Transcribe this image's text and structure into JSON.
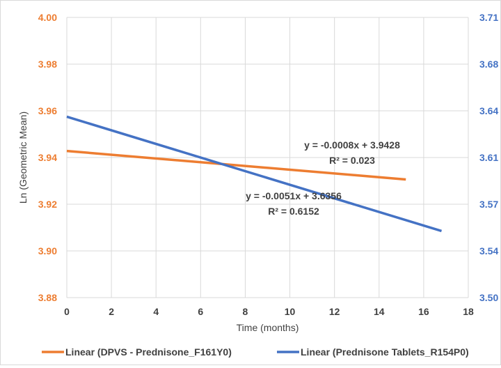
{
  "chart_data": {
    "type": "line",
    "x": {
      "label": "Time (months)",
      "range": [
        0,
        18
      ],
      "ticks": [
        "0",
        "2",
        "4",
        "6",
        "8",
        "10",
        "12",
        "14",
        "16",
        "18"
      ]
    },
    "y_left": {
      "label": "Ln (Geometric Mean)",
      "range": [
        3.88,
        4.0
      ],
      "ticks": [
        "3.88",
        "3.90",
        "3.92",
        "3.94",
        "3.96",
        "3.98",
        "4.00"
      ],
      "color": "#ed7d31"
    },
    "y_right": {
      "label": "",
      "range": [
        3.5,
        3.71
      ],
      "ticks": [
        "3.50",
        "3.54",
        "3.57",
        "3.61",
        "3.64",
        "3.68",
        "3.71"
      ],
      "color": "#4472c4"
    },
    "grid": true,
    "legend_position": "bottom",
    "series": [
      {
        "name": "Linear (DPVS - Prednisone_F161Y0)",
        "axis": "left",
        "color": "#ed7d31",
        "x": [
          0,
          15.2
        ],
        "y": [
          3.9428,
          3.9306
        ],
        "equation": "y = -0.0008x + 3.9428",
        "r2": "R² = 0.023"
      },
      {
        "name": "Linear (Prednisone Tablets_R154P0)",
        "axis": "right",
        "color": "#4472c4",
        "x": [
          0,
          16.8
        ],
        "y": [
          3.6356,
          3.5499
        ],
        "equation": "y = -0.0051x + 3.6356",
        "r2": "R² = 0.6152"
      }
    ]
  }
}
